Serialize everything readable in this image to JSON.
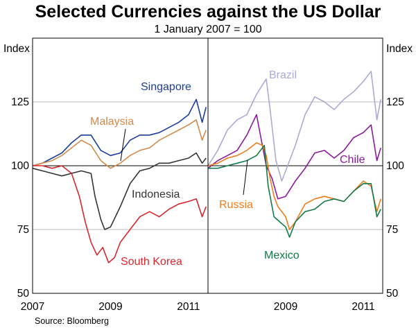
{
  "chart_data": {
    "type": "line",
    "title": "Selected Currencies against the US Dollar",
    "subtitle": "1 January 2007 = 100",
    "ylabel_left": "Index",
    "ylabel_right": "Index",
    "ylim": [
      50,
      150
    ],
    "yticks": [
      50,
      75,
      100,
      125
    ],
    "xlim": [
      2007.0,
      2011.5
    ],
    "baseline": 100,
    "source": "Source: Bloomberg",
    "panels": [
      {
        "xtick_labels": [
          "2007",
          "2009",
          "2011"
        ],
        "xtick_values": [
          2007,
          2009,
          2011
        ],
        "series": [
          {
            "name": "Singapore",
            "color": "#1b3d9a",
            "x": [
              2007.0,
              2007.25,
              2007.5,
              2007.75,
              2008.0,
              2008.25,
              2008.5,
              2008.75,
              2009.0,
              2009.25,
              2009.5,
              2009.75,
              2010.0,
              2010.25,
              2010.5,
              2010.75,
              2011.0,
              2011.2,
              2011.35,
              2011.45
            ],
            "y": [
              100,
              101,
              103,
              105,
              109,
              112,
              112,
              106,
              104,
              105,
              110,
              112,
              112,
              113,
              115,
              117,
              120,
              126,
              117,
              123
            ]
          },
          {
            "name": "Malaysia",
            "color": "#d28a4a",
            "x": [
              2007.0,
              2007.25,
              2007.5,
              2007.75,
              2008.0,
              2008.25,
              2008.5,
              2008.75,
              2009.0,
              2009.25,
              2009.5,
              2009.75,
              2010.0,
              2010.25,
              2010.5,
              2010.75,
              2011.0,
              2011.2,
              2011.35,
              2011.45
            ],
            "y": [
              100,
              101,
              102,
              104,
              107,
              110,
              108,
              102,
              99,
              101,
              104,
              106,
              107,
              110,
              112,
              114,
              116,
              118,
              110,
              114
            ]
          },
          {
            "name": "Indonesia",
            "color": "#333333",
            "x": [
              2007.0,
              2007.25,
              2007.5,
              2007.75,
              2008.0,
              2008.25,
              2008.5,
              2008.6,
              2008.75,
              2008.85,
              2009.0,
              2009.25,
              2009.5,
              2009.75,
              2010.0,
              2010.25,
              2010.5,
              2010.75,
              2011.0,
              2011.2,
              2011.35,
              2011.45
            ],
            "y": [
              99,
              98,
              97,
              96,
              97,
              98,
              97,
              88,
              79,
              75,
              76,
              84,
              93,
              98,
              99,
              101,
              101,
              102,
              103,
              105,
              101,
              103
            ]
          },
          {
            "name": "South Korea",
            "color": "#d9262c",
            "x": [
              2007.0,
              2007.25,
              2007.5,
              2007.75,
              2008.0,
              2008.2,
              2008.35,
              2008.5,
              2008.65,
              2008.8,
              2008.95,
              2009.1,
              2009.25,
              2009.5,
              2009.75,
              2010.0,
              2010.25,
              2010.5,
              2010.75,
              2011.0,
              2011.2,
              2011.35,
              2011.45
            ],
            "y": [
              100,
              100,
              99,
              100,
              97,
              88,
              78,
              70,
              65,
              68,
              62,
              64,
              70,
              75,
              80,
              82,
              80,
              83,
              85,
              86,
              87,
              80,
              84
            ]
          }
        ],
        "labels": [
          "Singapore",
          "Malaysia",
          "Indonesia",
          "South Korea"
        ]
      },
      {
        "xtick_labels": [
          "2009",
          "2011"
        ],
        "xtick_values": [
          2009,
          2011
        ],
        "series": [
          {
            "name": "Brazil",
            "color": "#aaaad6",
            "x": [
              2007.0,
              2007.25,
              2007.5,
              2007.75,
              2008.0,
              2008.25,
              2008.5,
              2008.6,
              2008.75,
              2008.9,
              2009.0,
              2009.25,
              2009.5,
              2009.75,
              2010.0,
              2010.25,
              2010.5,
              2010.75,
              2011.0,
              2011.2,
              2011.35,
              2011.45
            ],
            "y": [
              100,
              106,
              114,
              118,
              120,
              128,
              134,
              122,
              102,
              94,
              98,
              108,
              120,
              127,
              125,
              122,
              126,
              129,
              133,
              137,
              118,
              126
            ]
          },
          {
            "name": "Chile",
            "color": "#8a1a9c",
            "x": [
              2007.0,
              2007.25,
              2007.5,
              2007.75,
              2008.0,
              2008.25,
              2008.4,
              2008.5,
              2008.65,
              2008.8,
              2009.0,
              2009.25,
              2009.5,
              2009.75,
              2010.0,
              2010.25,
              2010.5,
              2010.75,
              2011.0,
              2011.2,
              2011.35,
              2011.45
            ],
            "y": [
              99,
              102,
              104,
              106,
              112,
              120,
              108,
              100,
              95,
              87,
              88,
              94,
              99,
              105,
              106,
              103,
              106,
              111,
              113,
              116,
              102,
              107
            ]
          },
          {
            "name": "Russia",
            "color": "#ef7d1a",
            "x": [
              2007.0,
              2007.25,
              2007.5,
              2007.75,
              2008.0,
              2008.25,
              2008.4,
              2008.5,
              2008.6,
              2008.7,
              2008.8,
              2009.0,
              2009.1,
              2009.25,
              2009.5,
              2009.75,
              2010.0,
              2010.25,
              2010.5,
              2010.75,
              2011.0,
              2011.2,
              2011.35,
              2011.45
            ],
            "y": [
              100,
              101,
              103,
              104,
              106,
              109,
              108,
              104,
              95,
              88,
              84,
              80,
              75,
              78,
              85,
              87,
              88,
              87,
              86,
              90,
              94,
              92,
              82,
              87
            ]
          },
          {
            "name": "Mexico",
            "color": "#127a48",
            "x": [
              2007.0,
              2007.25,
              2007.5,
              2007.75,
              2008.0,
              2008.25,
              2008.45,
              2008.55,
              2008.7,
              2008.85,
              2009.0,
              2009.1,
              2009.25,
              2009.5,
              2009.75,
              2010.0,
              2010.25,
              2010.5,
              2010.75,
              2011.0,
              2011.2,
              2011.35,
              2011.45
            ],
            "y": [
              99,
              99,
              100,
              101,
              102,
              104,
              108,
              92,
              80,
              78,
              76,
              72,
              78,
              82,
              83,
              86,
              87,
              86,
              90,
              93,
              93,
              80,
              83
            ]
          }
        ],
        "labels": [
          "Brazil",
          "Chile",
          "Russia",
          "Mexico"
        ]
      }
    ]
  }
}
